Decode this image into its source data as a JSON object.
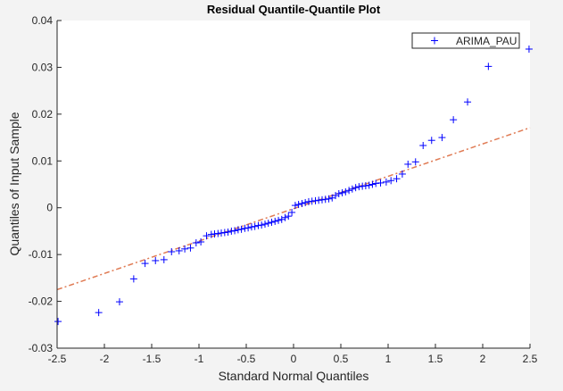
{
  "chart_data": {
    "type": "scatter",
    "title": "Residual Quantile-Quantile Plot",
    "xlabel": "Standard Normal Quantiles",
    "ylabel": "Quantiles of Input Sample",
    "xlim": [
      -2.5,
      2.5
    ],
    "ylim": [
      -0.03,
      0.04
    ],
    "xticks": [
      -2.5,
      -2,
      -1.5,
      -1,
      -0.5,
      0,
      0.5,
      1,
      1.5,
      2,
      2.5
    ],
    "xtick_labels": [
      "-2.5",
      "-2",
      "-1.5",
      "-1",
      "-0.5",
      "0",
      "0.5",
      "1",
      "1.5",
      "2",
      "2.5"
    ],
    "yticks": [
      -0.03,
      -0.02,
      -0.01,
      0,
      0.01,
      0.02,
      0.03,
      0.04
    ],
    "ytick_labels": [
      "-0.03",
      "-0.02",
      "-0.01",
      "0",
      "0.01",
      "0.02",
      "0.03",
      "0.04"
    ],
    "grid": false,
    "legend": {
      "position": "top-right",
      "entries": [
        "ARIMA_PAU"
      ]
    },
    "series": [
      {
        "name": "ARIMA_PAU",
        "marker": "+",
        "color": "#0000ff",
        "x": [
          -2.49,
          -2.06,
          -1.84,
          -1.69,
          -1.57,
          -1.46,
          -1.37,
          -1.29,
          -1.21,
          -1.15,
          -1.09,
          -1.03,
          -0.98,
          -0.92,
          -0.87,
          -0.835,
          -0.799,
          -0.764,
          -0.728,
          -0.693,
          -0.657,
          -0.622,
          -0.586,
          -0.551,
          -0.515,
          -0.48,
          -0.444,
          -0.409,
          -0.373,
          -0.338,
          -0.302,
          -0.267,
          -0.231,
          -0.196,
          -0.16,
          -0.125,
          -0.089,
          -0.054,
          -0.018,
          0.018,
          0.053,
          0.089,
          0.124,
          0.16,
          0.195,
          0.231,
          0.266,
          0.302,
          0.337,
          0.373,
          0.408,
          0.444,
          0.479,
          0.515,
          0.55,
          0.586,
          0.621,
          0.657,
          0.692,
          0.728,
          0.763,
          0.799,
          0.834,
          0.87,
          0.92,
          0.98,
          1.03,
          1.09,
          1.15,
          1.21,
          1.29,
          1.37,
          1.46,
          1.57,
          1.69,
          1.84,
          2.06,
          2.49
        ],
        "y": [
          -0.0243,
          -0.0224,
          -0.0201,
          -0.0152,
          -0.0119,
          -0.0113,
          -0.0111,
          -0.0094,
          -0.0092,
          -0.0088,
          -0.0086,
          -0.0075,
          -0.0073,
          -0.006,
          -0.0057,
          -0.0056,
          -0.0055,
          -0.0054,
          -0.0053,
          -0.0052,
          -0.005,
          -0.0049,
          -0.0047,
          -0.0046,
          -0.0044,
          -0.0043,
          -0.0041,
          -0.004,
          -0.0038,
          -0.0037,
          -0.0035,
          -0.0033,
          -0.0031,
          -0.0029,
          -0.0027,
          -0.0025,
          -0.0021,
          -0.0018,
          -0.001,
          0.0005,
          0.0007,
          0.0009,
          0.0011,
          0.0013,
          0.0014,
          0.0015,
          0.0016,
          0.0017,
          0.0018,
          0.0019,
          0.0021,
          0.0026,
          0.003,
          0.0032,
          0.0034,
          0.0037,
          0.004,
          0.0043,
          0.0045,
          0.0046,
          0.0047,
          0.0048,
          0.005,
          0.0052,
          0.0053,
          0.0055,
          0.0058,
          0.0062,
          0.0072,
          0.0093,
          0.0098,
          0.0133,
          0.0144,
          0.015,
          0.0188,
          0.0226,
          0.0302,
          0.0339
        ]
      }
    ],
    "reference_line": {
      "style": "dash-dot",
      "color": "#e07b54",
      "x": [
        -2.5,
        2.5
      ],
      "y": [
        -0.0175,
        0.0171
      ]
    }
  }
}
